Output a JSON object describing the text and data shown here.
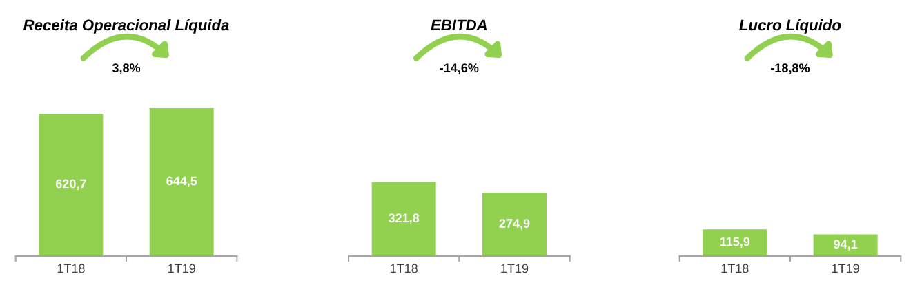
{
  "chart_data": [
    {
      "type": "bar",
      "title": "Receita Operacional Líquida",
      "categories": [
        "1T18",
        "1T19"
      ],
      "values": [
        620.7,
        644.5
      ],
      "color": "#92d050",
      "value_labels": [
        "620,7",
        "644,5"
      ],
      "annotations": [
        "3,8%"
      ]
    },
    {
      "type": "bar",
      "title": "EBITDA",
      "categories": [
        "1T18",
        "1T19"
      ],
      "values": [
        321.8,
        274.9
      ],
      "color": "#92d050",
      "value_labels": [
        "321,8",
        "274,9"
      ],
      "annotations": [
        "-14,6%"
      ]
    },
    {
      "type": "bar",
      "title": "Lucro Líquido",
      "categories": [
        "1T18",
        "1T19"
      ],
      "values": [
        115.9,
        94.1
      ],
      "color": "#92d050",
      "value_labels": [
        "115,9",
        "94,1"
      ],
      "annotations": [
        "-18,8%"
      ]
    }
  ]
}
